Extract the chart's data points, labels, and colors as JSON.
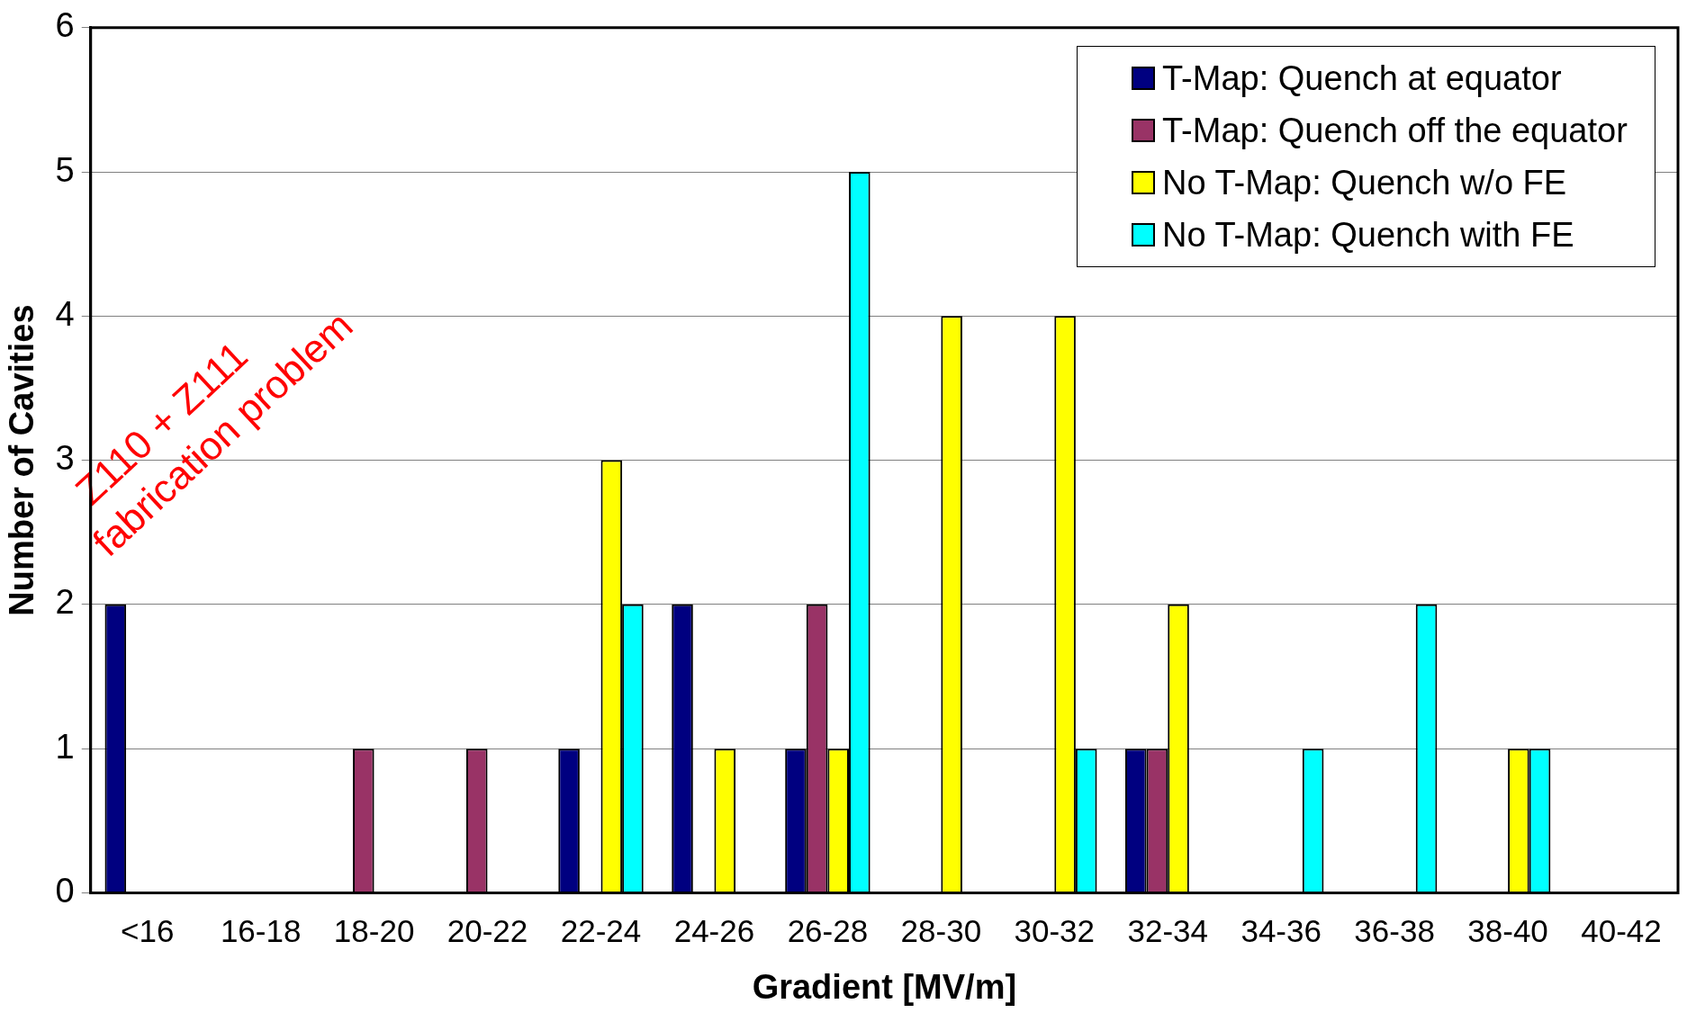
{
  "chart_data": {
    "type": "bar",
    "xlabel": "Gradient [MV/m]",
    "ylabel": "Number of Cavities",
    "categories": [
      "<16",
      "16-18",
      "18-20",
      "20-22",
      "22-24",
      "24-26",
      "26-28",
      "28-30",
      "30-32",
      "32-34",
      "34-36",
      "36-38",
      "38-40",
      "40-42"
    ],
    "series": [
      {
        "name": "T-Map: Quench at equator",
        "color": "#000080",
        "values": [
          2,
          0,
          0,
          0,
          1,
          2,
          1,
          0,
          0,
          1,
          0,
          0,
          0,
          0
        ]
      },
      {
        "name": "T-Map: Quench off the equator",
        "color": "#993366",
        "values": [
          0,
          0,
          1,
          1,
          0,
          0,
          2,
          0,
          0,
          1,
          0,
          0,
          0,
          0
        ]
      },
      {
        "name": "No T-Map: Quench w/o FE",
        "color": "#ffff00",
        "values": [
          0,
          0,
          0,
          0,
          3,
          1,
          1,
          4,
          4,
          2,
          0,
          0,
          1,
          0
        ]
      },
      {
        "name": "No T-Map: Quench with FE",
        "color": "#00ffff",
        "values": [
          0,
          0,
          0,
          0,
          2,
          0,
          5,
          0,
          1,
          0,
          1,
          2,
          1,
          0
        ]
      }
    ],
    "ylim": [
      0,
      6
    ],
    "yticks": [
      0,
      1,
      2,
      3,
      4,
      5,
      6
    ],
    "grid": "y",
    "legend": "top right",
    "annotations": [
      "Z110 + Z111",
      "fabrication problem"
    ]
  }
}
